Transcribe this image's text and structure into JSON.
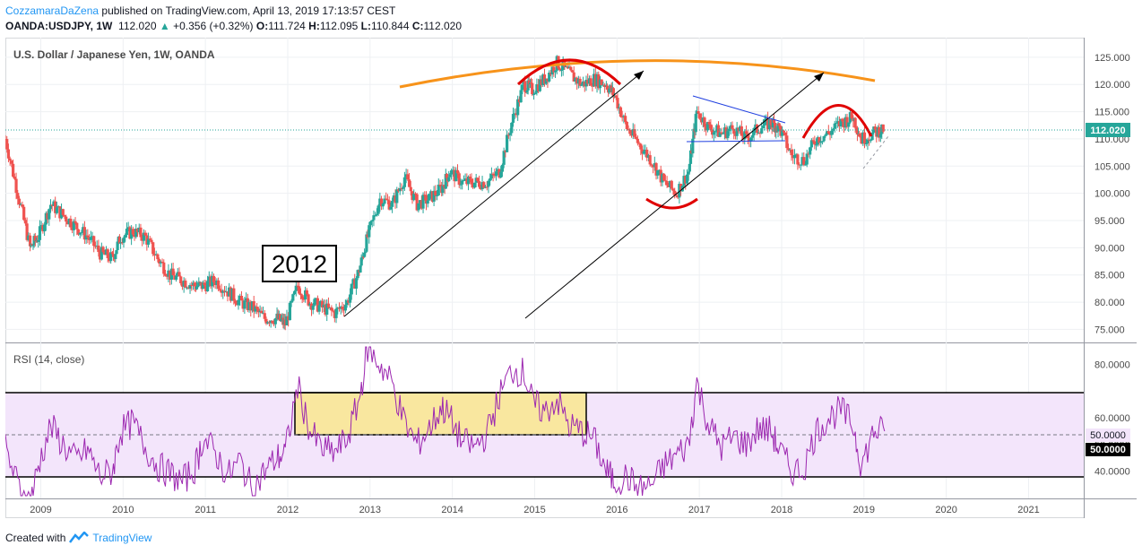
{
  "header": {
    "author": "CozzamaraDaZena",
    "published_text": "published on TradingView.com, April 13, 2019 17:13:57 CEST",
    "symbol": "OANDA:USDJPY, 1W",
    "last": "112.020",
    "arrow": "▲",
    "change": "+0.356 (+0.32%)",
    "o_label": "O:",
    "o_value": "111.724",
    "h_label": "H:",
    "h_value": "112.095",
    "l_label": "L:",
    "l_value": "110.844",
    "c_label": "C:",
    "c_value": "112.020"
  },
  "footer": {
    "created_with": "Created with",
    "brand": "TradingView"
  },
  "colors": {
    "up": "#26a69a",
    "down": "#ef5350",
    "rsi_line": "#9c27b0",
    "rsi_band": "#f3e5fb",
    "highlight": "#f9e79f",
    "arc_orange": "#f7931a",
    "arc_red": "#e00000",
    "triangle_blue": "#1f3fe0",
    "price_label_bg": "#26a69a"
  },
  "chart_data": [
    {
      "type": "candlestick",
      "title": "U.S. Dollar / Japanese Yen, 1W, OANDA",
      "annotation": "2012",
      "xlabel": "",
      "ylabel": "",
      "xticks": [
        "2009",
        "2010",
        "2011",
        "2012",
        "2013",
        "2014",
        "2015",
        "2016",
        "2017",
        "2018",
        "2019",
        "2020",
        "2021"
      ],
      "yticks": [
        "125.000",
        "120.000",
        "115.000",
        "110.000",
        "105.000",
        "100.000",
        "95.000",
        "90.000",
        "85.000",
        "80.000",
        "75.000"
      ],
      "ylim": [
        72.6,
        128.6
      ],
      "xlim": [
        2008.6,
        2021.7
      ],
      "current_price_label": "112.020",
      "grid": true,
      "close_series": {
        "x": [
          2008.6,
          2008.75,
          2008.9,
          2009.0,
          2009.15,
          2009.3,
          2009.45,
          2009.6,
          2009.75,
          2009.9,
          2010.0,
          2010.15,
          2010.3,
          2010.45,
          2010.6,
          2010.75,
          2010.9,
          2011.0,
          2011.15,
          2011.3,
          2011.45,
          2011.6,
          2011.75,
          2011.9,
          2012.0,
          2012.15,
          2012.3,
          2012.45,
          2012.6,
          2012.75,
          2012.9,
          2013.0,
          2013.15,
          2013.3,
          2013.45,
          2013.6,
          2013.75,
          2013.9,
          2014.0,
          2014.15,
          2014.3,
          2014.45,
          2014.6,
          2014.75,
          2014.9,
          2015.0,
          2015.15,
          2015.3,
          2015.45,
          2015.6,
          2015.75,
          2015.9,
          2016.0,
          2016.15,
          2016.3,
          2016.45,
          2016.6,
          2016.75,
          2016.9,
          2017.0,
          2017.15,
          2017.3,
          2017.45,
          2017.6,
          2017.75,
          2017.9,
          2018.0,
          2018.15,
          2018.3,
          2018.45,
          2018.6,
          2018.75,
          2018.9,
          2019.0,
          2019.15,
          2019.28
        ],
        "close": [
          110,
          100,
          90,
          92,
          98,
          96,
          94,
          92,
          89,
          88,
          92,
          93,
          92,
          88,
          85,
          84,
          83,
          83,
          84,
          82,
          80,
          79,
          77,
          77,
          76,
          83,
          80,
          79,
          78,
          80,
          86,
          92,
          99,
          98,
          103,
          98,
          99,
          101,
          104,
          102,
          102,
          102,
          104,
          113,
          120,
          119,
          121,
          124,
          122,
          120,
          121,
          120,
          118,
          112,
          109,
          106,
          102,
          100,
          104,
          115,
          112,
          111,
          112,
          110,
          112,
          113,
          112,
          107,
          106,
          110,
          111,
          113,
          114,
          110,
          111,
          112.02
        ]
      }
    },
    {
      "type": "line",
      "title": "RSI (14, close)",
      "yticks": [
        "80.0000",
        "60.0000",
        "50.0000",
        "40.0000"
      ],
      "ylim": [
        29.8,
        87.6
      ],
      "overbought": 70,
      "midline": 50,
      "oversold": 30,
      "midline_label": "50.0000",
      "series": [
        {
          "x": [
            2008.6,
            2008.75,
            2008.9,
            2009.0,
            2009.15,
            2009.3,
            2009.45,
            2009.6,
            2009.75,
            2009.9,
            2010.0,
            2010.15,
            2010.3,
            2010.45,
            2010.6,
            2010.75,
            2010.9,
            2011.0,
            2011.15,
            2011.3,
            2011.45,
            2011.6,
            2011.75,
            2011.9,
            2012.0,
            2012.15,
            2012.3,
            2012.45,
            2012.6,
            2012.75,
            2012.9,
            2013.0,
            2013.15,
            2013.3,
            2013.45,
            2013.6,
            2013.75,
            2013.9,
            2014.0,
            2014.15,
            2014.3,
            2014.45,
            2014.6,
            2014.75,
            2014.9,
            2015.0,
            2015.15,
            2015.3,
            2015.45,
            2015.6,
            2015.75,
            2015.9,
            2016.0,
            2016.15,
            2016.3,
            2016.45,
            2016.6,
            2016.75,
            2016.9,
            2017.0,
            2017.15,
            2017.3,
            2017.45,
            2017.6,
            2017.75,
            2017.9,
            2018.0,
            2018.15,
            2018.3,
            2018.45,
            2018.6,
            2018.75,
            2018.9,
            2019.0,
            2019.15,
            2019.28
          ],
          "values": [
            48,
            35,
            28,
            42,
            57,
            50,
            44,
            48,
            38,
            40,
            55,
            58,
            49,
            42,
            39,
            36,
            41,
            52,
            47,
            38,
            44,
            33,
            40,
            45,
            47,
            72,
            55,
            48,
            47,
            52,
            67,
            86,
            80,
            73,
            58,
            50,
            56,
            64,
            60,
            51,
            49,
            54,
            68,
            78,
            77,
            66,
            62,
            67,
            57,
            55,
            52,
            40,
            36,
            38,
            33,
            35,
            42,
            46,
            50,
            73,
            57,
            49,
            53,
            50,
            56,
            55,
            48,
            40,
            41,
            55,
            60,
            63,
            57,
            42,
            55,
            55
          ]
        }
      ],
      "highlight_range": {
        "x": [
          2012.12,
          2015.6
        ],
        "y": [
          50,
          70
        ]
      }
    }
  ]
}
